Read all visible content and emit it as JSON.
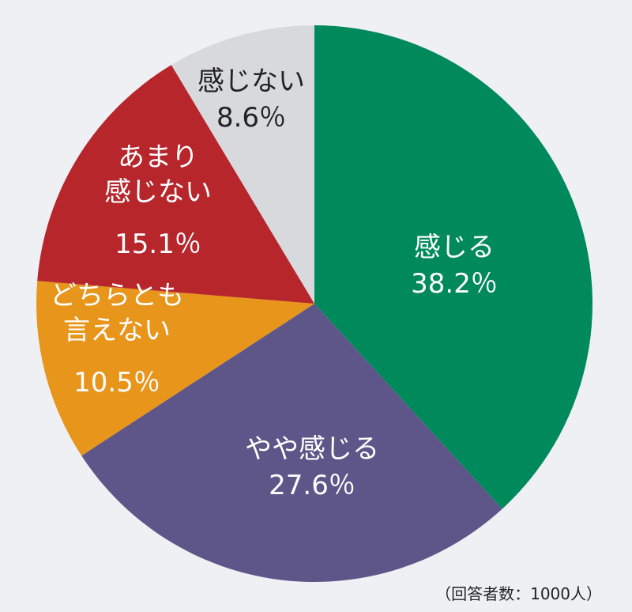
{
  "chart_data": {
    "type": "pie",
    "categories": [
      "感じる",
      "やや感じる",
      "どちらとも\n言えない",
      "あまり\n感じない",
      "感じない"
    ],
    "values": [
      38.2,
      27.6,
      10.5,
      15.1,
      8.6
    ],
    "value_labels": [
      "38.2％",
      "27.6％",
      "10.5％",
      "15.1％",
      "8.6％"
    ],
    "colors": [
      "#008a5c",
      "#5e5689",
      "#e8951b",
      "#b6262b",
      "#d8d9dd"
    ],
    "annotation": "（回答者数：1000人）"
  }
}
